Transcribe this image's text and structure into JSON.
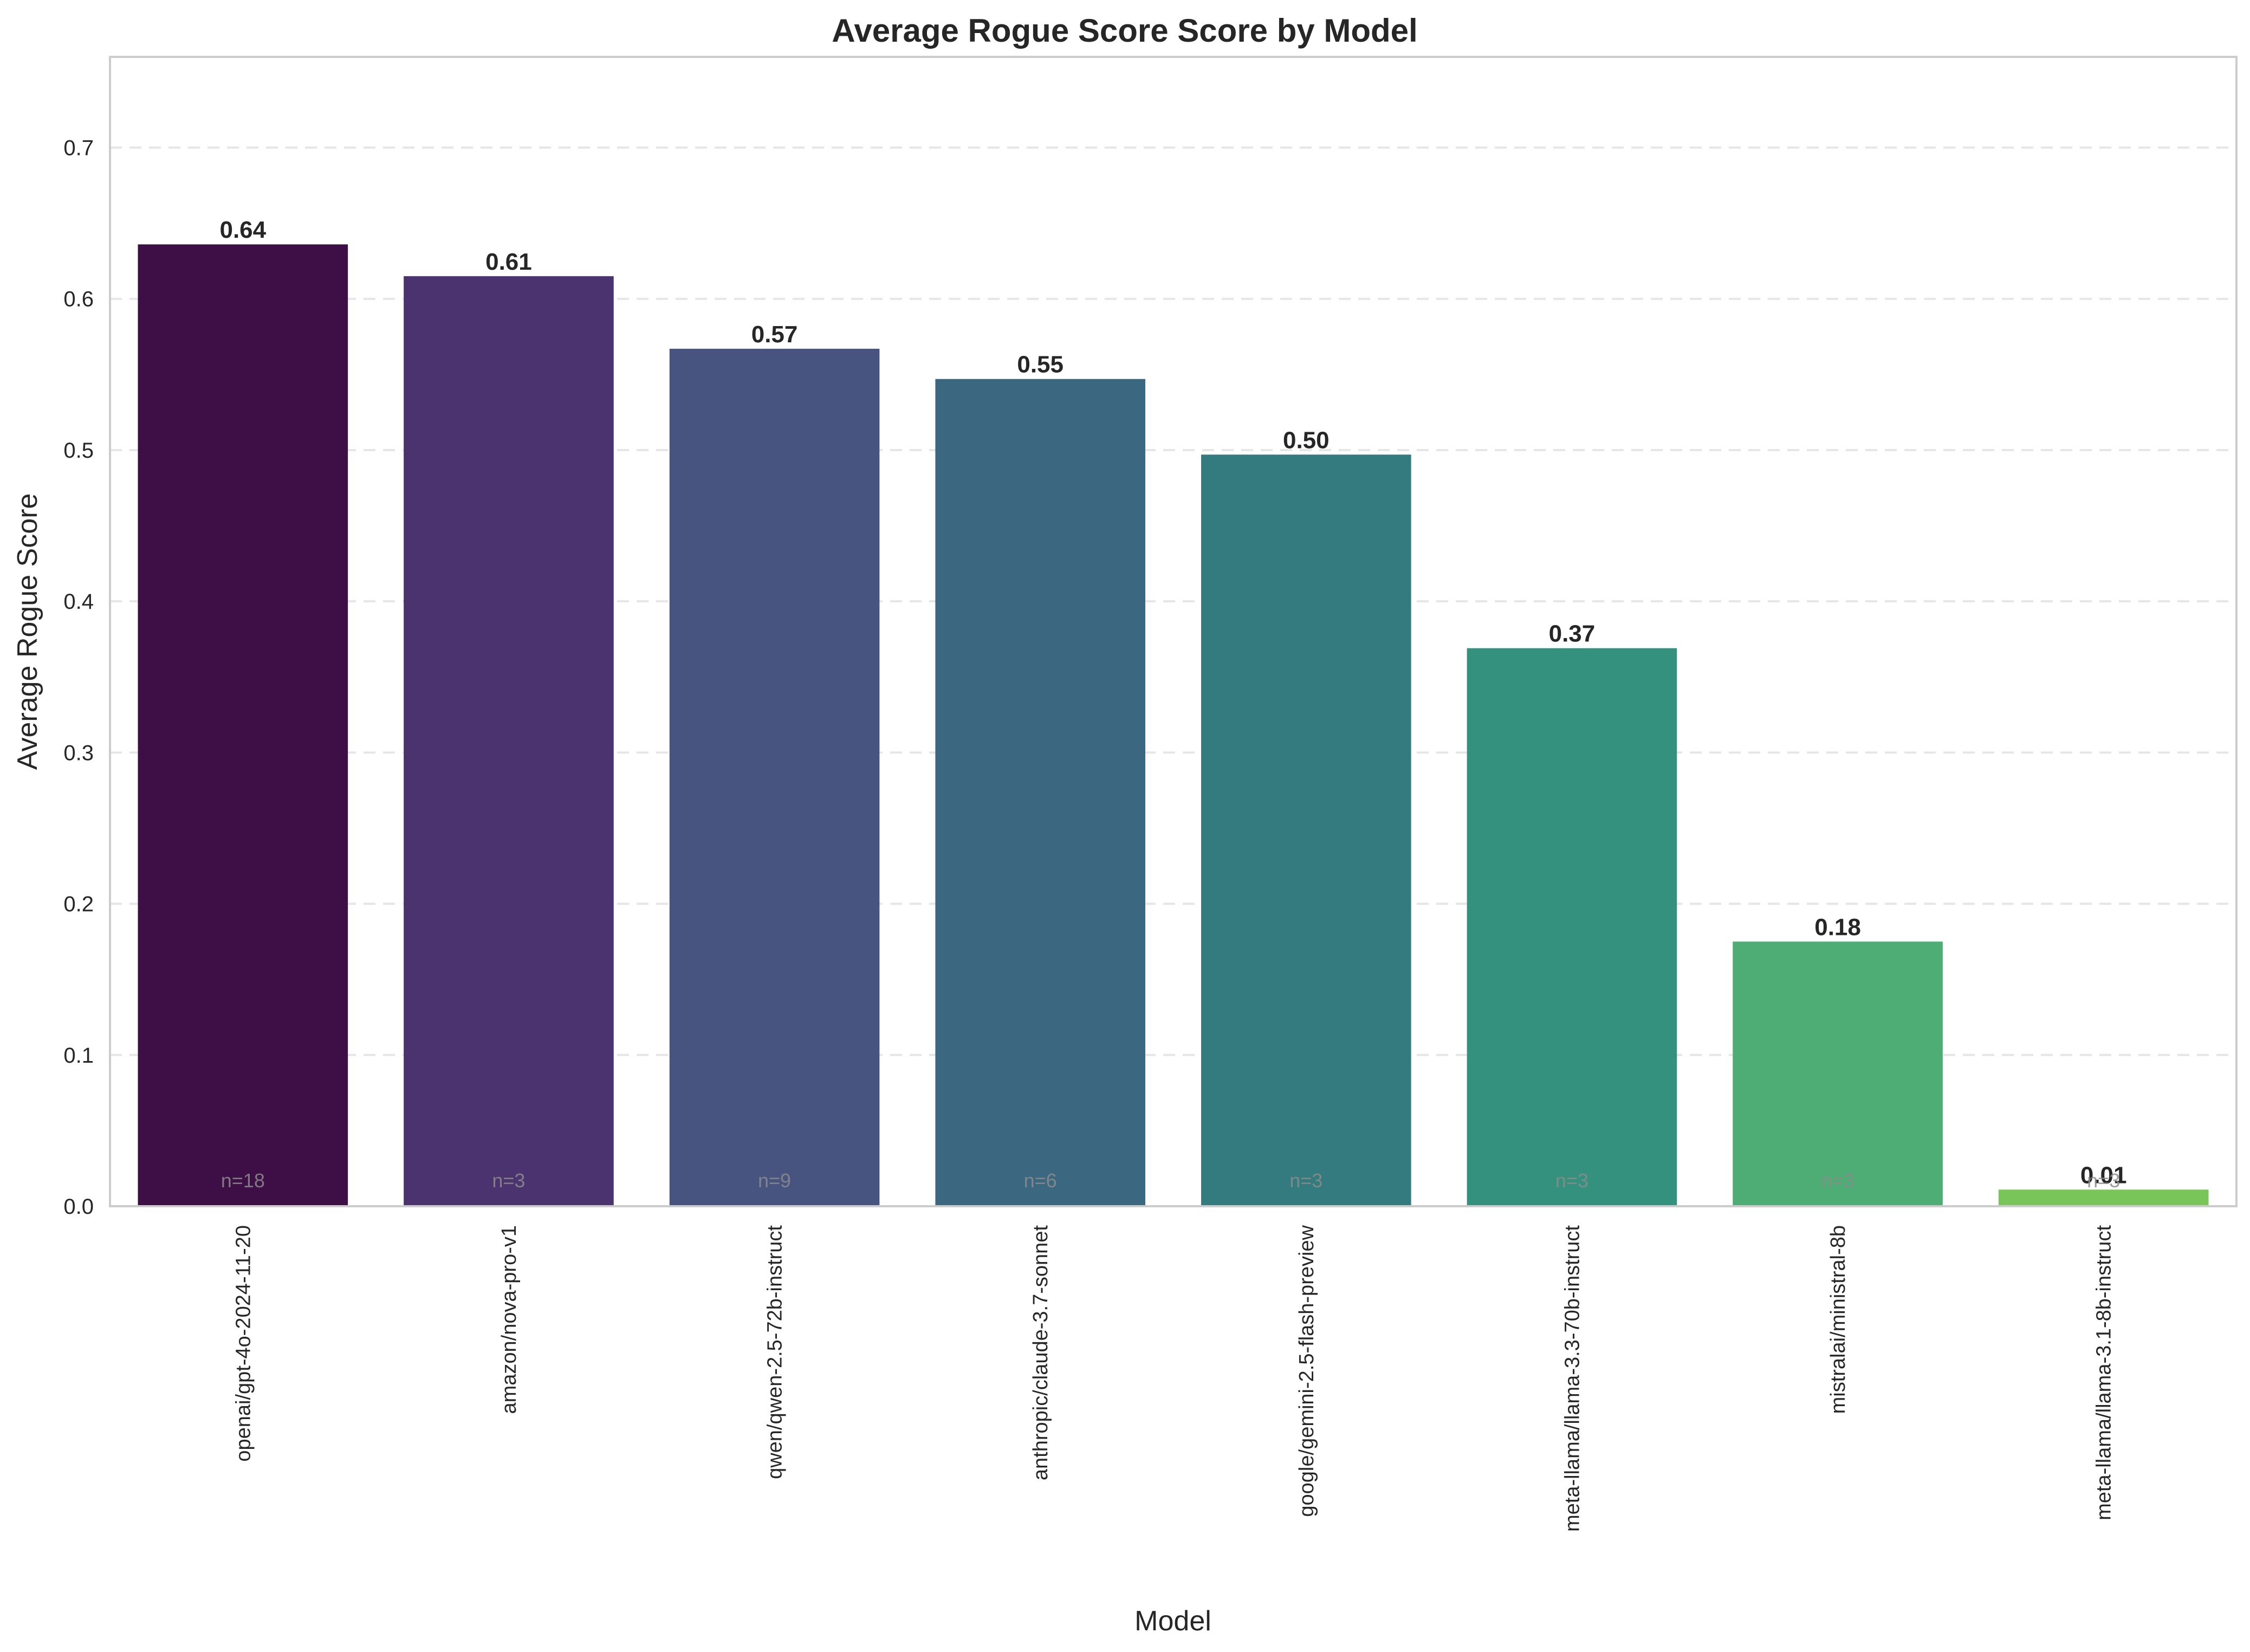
{
  "chart_data": {
    "type": "bar",
    "title": "Average Rogue Score Score by Model",
    "xlabel": "Model",
    "ylabel": "Average Rogue Score",
    "ylim": [
      0,
      0.76
    ],
    "yticks": [
      "0.0",
      "0.1",
      "0.2",
      "0.3",
      "0.4",
      "0.5",
      "0.6",
      "0.7"
    ],
    "grid": true,
    "categories": [
      "openai/gpt-4o-2024-11-20",
      "amazon/nova-pro-v1",
      "qwen/qwen-2.5-72b-instruct",
      "anthropic/claude-3.7-sonnet",
      "google/gemini-2.5-flash-preview",
      "meta-llama/llama-3.3-70b-instruct",
      "mistralai/ministral-8b",
      "meta-llama/llama-3.1-8b-instruct"
    ],
    "values": [
      0.636,
      0.615,
      0.567,
      0.547,
      0.497,
      0.369,
      0.175,
      0.011
    ],
    "value_labels": [
      "0.64",
      "0.61",
      "0.57",
      "0.55",
      "0.50",
      "0.37",
      "0.18",
      "0.01"
    ],
    "sample_labels": [
      "n=18",
      "n=3",
      "n=9",
      "n=6",
      "n=3",
      "n=3",
      "n=3",
      "n=3"
    ],
    "colors": [
      "#3e0e47",
      "#4b336f",
      "#47547f",
      "#3c6780",
      "#337b7e",
      "#33917d",
      "#4ead75",
      "#79c55a"
    ]
  }
}
